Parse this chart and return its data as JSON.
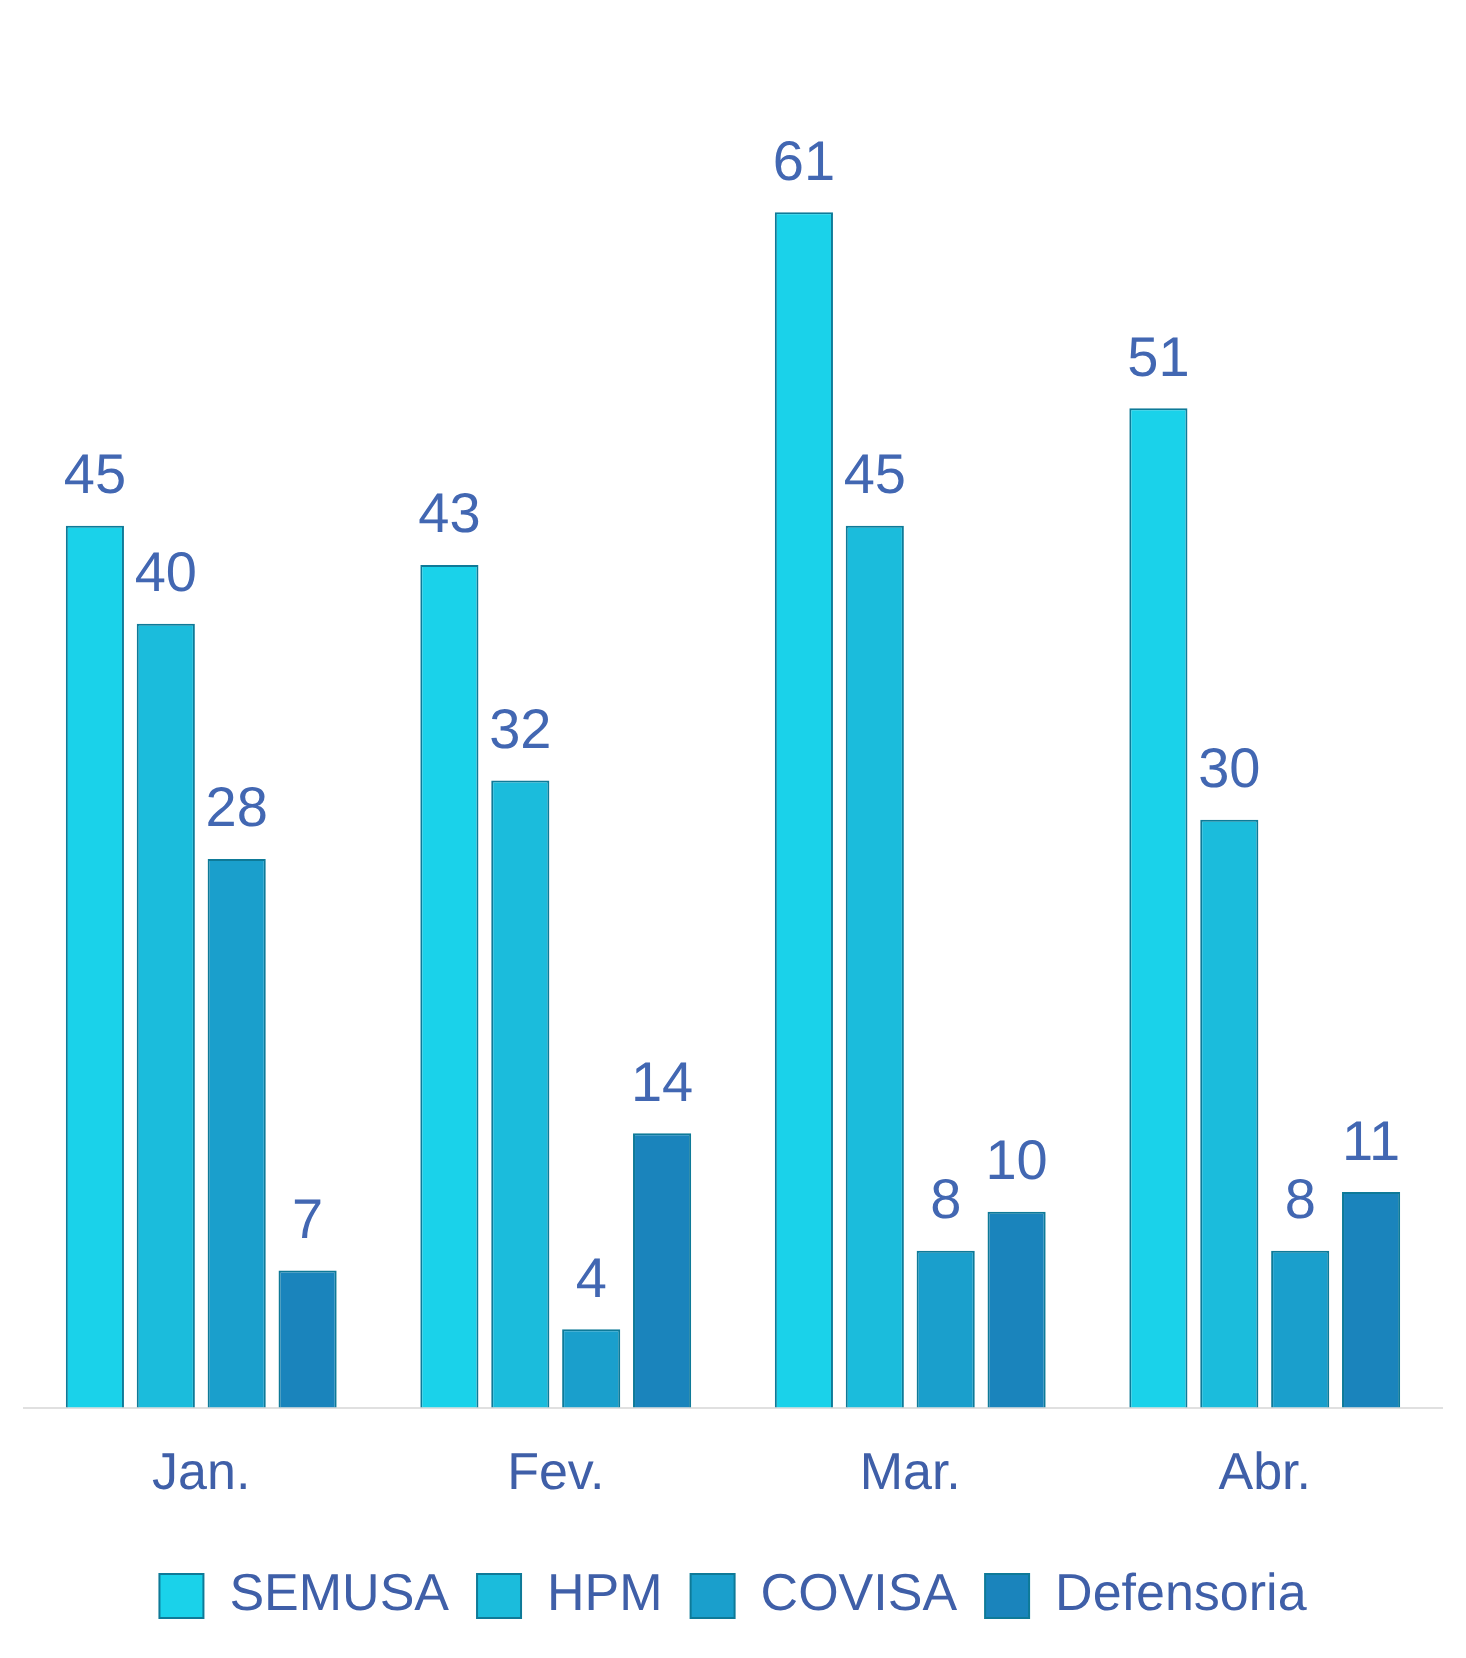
{
  "chart_data": {
    "type": "bar",
    "categories": [
      "Jan.",
      "Fev.",
      "Mar.",
      "Abr."
    ],
    "series": [
      {
        "name": "SEMUSA",
        "color": "#1ad2ea",
        "values": [
          45,
          43,
          61,
          51
        ]
      },
      {
        "name": "HPM",
        "color": "#1bbcdc",
        "values": [
          40,
          32,
          45,
          30
        ]
      },
      {
        "name": "COVISA",
        "color": "#1a9fcc",
        "values": [
          28,
          4,
          8,
          8
        ]
      },
      {
        "name": "Defensoria",
        "color": "#1a84bc",
        "values": [
          7,
          14,
          10,
          11
        ]
      }
    ],
    "data_labels": true,
    "legend": "bottom",
    "grid": false
  }
}
